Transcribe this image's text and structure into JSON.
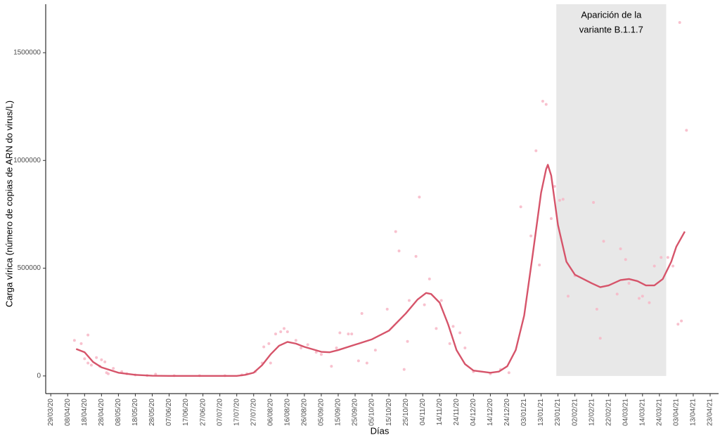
{
  "chart_data": {
    "type": "scatter",
    "x_label": "Días",
    "y_label": "Carga vírica (número de copias de ARN do virus/L)",
    "xlim": [
      "2020-03-26",
      "2021-04-28"
    ],
    "ylim": [
      -82000,
      1725000
    ],
    "yticks": [
      0,
      500000,
      1000000,
      1500000
    ],
    "xticks": [
      {
        "value": "2020-03-29",
        "label": "29/03/20"
      },
      {
        "value": "2020-04-08",
        "label": "08/04/20"
      },
      {
        "value": "2020-04-18",
        "label": "18/04/20"
      },
      {
        "value": "2020-04-28",
        "label": "28/04/20"
      },
      {
        "value": "2020-05-08",
        "label": "08/05/20"
      },
      {
        "value": "2020-05-18",
        "label": "18/05/20"
      },
      {
        "value": "2020-05-28",
        "label": "28/05/20"
      },
      {
        "value": "2020-06-07",
        "label": "07/06/20"
      },
      {
        "value": "2020-06-17",
        "label": "17/06/20"
      },
      {
        "value": "2020-06-27",
        "label": "27/06/20"
      },
      {
        "value": "2020-07-07",
        "label": "07/07/20"
      },
      {
        "value": "2020-07-17",
        "label": "17/07/20"
      },
      {
        "value": "2020-07-27",
        "label": "27/07/20"
      },
      {
        "value": "2020-08-06",
        "label": "06/08/20"
      },
      {
        "value": "2020-08-16",
        "label": "16/08/20"
      },
      {
        "value": "2020-08-26",
        "label": "26/08/20"
      },
      {
        "value": "2020-09-05",
        "label": "05/09/20"
      },
      {
        "value": "2020-09-15",
        "label": "15/09/20"
      },
      {
        "value": "2020-09-25",
        "label": "25/09/20"
      },
      {
        "value": "2020-10-05",
        "label": "05/10/20"
      },
      {
        "value": "2020-10-15",
        "label": "15/10/20"
      },
      {
        "value": "2020-10-25",
        "label": "25/10/20"
      },
      {
        "value": "2020-11-04",
        "label": "04/11/20"
      },
      {
        "value": "2020-11-14",
        "label": "14/11/20"
      },
      {
        "value": "2020-11-24",
        "label": "24/11/20"
      },
      {
        "value": "2020-12-04",
        "label": "04/12/20"
      },
      {
        "value": "2020-12-14",
        "label": "14/12/20"
      },
      {
        "value": "2020-12-24",
        "label": "24/12/20"
      },
      {
        "value": "2021-01-03",
        "label": "03/01/21"
      },
      {
        "value": "2021-01-13",
        "label": "13/01/21"
      },
      {
        "value": "2021-01-23",
        "label": "23/01/21"
      },
      {
        "value": "2021-02-02",
        "label": "02/02/21"
      },
      {
        "value": "2021-02-12",
        "label": "12/02/21"
      },
      {
        "value": "2021-02-22",
        "label": "22/02/21"
      },
      {
        "value": "2021-03-04",
        "label": "04/03/21"
      },
      {
        "value": "2021-03-14",
        "label": "14/03/21"
      },
      {
        "value": "2021-03-24",
        "label": "24/03/21"
      },
      {
        "value": "2021-04-03",
        "label": "03/04/21"
      },
      {
        "value": "2021-04-13",
        "label": "13/04/21"
      },
      {
        "value": "2021-04-23",
        "label": "23/04/21"
      }
    ],
    "annotation": {
      "text": [
        "Aparición de la",
        "variante B.1.1.7"
      ],
      "x0": "2021-01-22",
      "x1": "2021-03-28",
      "color": "#e8e8e8"
    },
    "series": [
      {
        "type": "scatter",
        "color": "#f7b6c6",
        "x": [
          "2020-04-12",
          "2020-04-16",
          "2020-04-18",
          "2020-04-20",
          "2020-04-20",
          "2020-04-22",
          "2020-04-25",
          "2020-04-27",
          "2020-04-28",
          "2020-04-30",
          "2020-05-01",
          "2020-05-02",
          "2020-05-05",
          "2020-05-10",
          "2020-05-13",
          "2020-05-18",
          "2020-05-25",
          "2020-05-30",
          "2020-06-10",
          "2020-06-25",
          "2020-07-10",
          "2020-07-20",
          "2020-07-23",
          "2020-07-28",
          "2020-08-01",
          "2020-08-02",
          "2020-08-05",
          "2020-08-06",
          "2020-08-09",
          "2020-08-12",
          "2020-08-14",
          "2020-08-16",
          "2020-08-21",
          "2020-08-24",
          "2020-08-28",
          "2020-09-02",
          "2020-09-05",
          "2020-09-11",
          "2020-09-14",
          "2020-09-16",
          "2020-09-21",
          "2020-09-23",
          "2020-09-27",
          "2020-09-29",
          "2020-10-02",
          "2020-10-07",
          "2020-10-14",
          "2020-10-19",
          "2020-10-21",
          "2020-10-24",
          "2020-10-26",
          "2020-10-27",
          "2020-10-31",
          "2020-11-02",
          "2020-11-05",
          "2020-11-08",
          "2020-11-12",
          "2020-11-15",
          "2020-11-20",
          "2020-11-22",
          "2020-11-26",
          "2020-11-29",
          "2020-12-04",
          "2020-12-14",
          "2020-12-20",
          "2020-12-25",
          "2021-01-01",
          "2021-01-07",
          "2021-01-10",
          "2021-01-12",
          "2021-01-14",
          "2021-01-16",
          "2021-01-19",
          "2021-01-21",
          "2021-01-24",
          "2021-01-26",
          "2021-01-29",
          "2021-02-02",
          "2021-02-13",
          "2021-02-15",
          "2021-02-17",
          "2021-02-19",
          "2021-02-27",
          "2021-03-01",
          "2021-03-04",
          "2021-03-06",
          "2021-03-12",
          "2021-03-14",
          "2021-03-18",
          "2021-03-21",
          "2021-03-25",
          "2021-03-29",
          "2021-04-01",
          "2021-04-04",
          "2021-04-06",
          "2021-04-05",
          "2021-04-09"
        ],
        "values": [
          165000,
          150000,
          80000,
          190000,
          60000,
          50000,
          85000,
          45000,
          75000,
          65000,
          15000,
          10000,
          35000,
          20000,
          10000,
          5000,
          2000,
          8000,
          1000,
          1000,
          1000,
          5000,
          10000,
          20000,
          60000,
          135000,
          150000,
          60000,
          195000,
          205000,
          220000,
          205000,
          165000,
          130000,
          145000,
          110000,
          100000,
          45000,
          130000,
          200000,
          195000,
          195000,
          70000,
          290000,
          60000,
          120000,
          310000,
          670000,
          580000,
          30000,
          160000,
          350000,
          555000,
          830000,
          330000,
          450000,
          220000,
          350000,
          150000,
          230000,
          200000,
          130000,
          20000,
          10000,
          30000,
          15000,
          785000,
          650000,
          1045000,
          515000,
          1275000,
          1260000,
          730000,
          880000,
          815000,
          820000,
          370000,
          465000,
          805000,
          310000,
          175000,
          625000,
          380000,
          590000,
          540000,
          430000,
          360000,
          370000,
          340000,
          510000,
          550000,
          550000,
          510000,
          240000,
          255000,
          1640000,
          1140000
        ]
      },
      {
        "type": "line",
        "color": "#d6546a",
        "x": [
          "2020-04-13",
          "2020-04-18",
          "2020-04-23",
          "2020-04-28",
          "2020-05-08",
          "2020-05-18",
          "2020-05-28",
          "2020-06-07",
          "2020-07-17",
          "2020-07-22",
          "2020-07-27",
          "2020-08-01",
          "2020-08-06",
          "2020-08-11",
          "2020-08-16",
          "2020-08-21",
          "2020-08-26",
          "2020-09-05",
          "2020-09-10",
          "2020-09-15",
          "2020-09-25",
          "2020-10-05",
          "2020-10-15",
          "2020-10-25",
          "2020-11-01",
          "2020-11-06",
          "2020-11-09",
          "2020-11-14",
          "2020-11-19",
          "2020-11-24",
          "2020-11-29",
          "2020-12-04",
          "2020-12-14",
          "2020-12-19",
          "2020-12-24",
          "2020-12-29",
          "2021-01-03",
          "2021-01-08",
          "2021-01-13",
          "2021-01-16",
          "2021-01-17",
          "2021-01-19",
          "2021-01-23",
          "2021-01-28",
          "2021-02-02",
          "2021-02-12",
          "2021-02-17",
          "2021-02-22",
          "2021-03-01",
          "2021-03-06",
          "2021-03-11",
          "2021-03-16",
          "2021-03-21",
          "2021-03-26",
          "2021-03-31",
          "2021-04-03",
          "2021-04-08"
        ],
        "values": [
          125000,
          110000,
          65000,
          40000,
          15000,
          5000,
          1000,
          0,
          0,
          5000,
          15000,
          50000,
          100000,
          140000,
          158000,
          150000,
          135000,
          112000,
          110000,
          120000,
          145000,
          170000,
          210000,
          290000,
          355000,
          385000,
          380000,
          340000,
          240000,
          120000,
          55000,
          25000,
          15000,
          20000,
          45000,
          120000,
          280000,
          560000,
          850000,
          960000,
          980000,
          930000,
          700000,
          530000,
          470000,
          430000,
          412000,
          420000,
          445000,
          450000,
          440000,
          420000,
          420000,
          450000,
          530000,
          600000,
          670000
        ]
      }
    ]
  }
}
